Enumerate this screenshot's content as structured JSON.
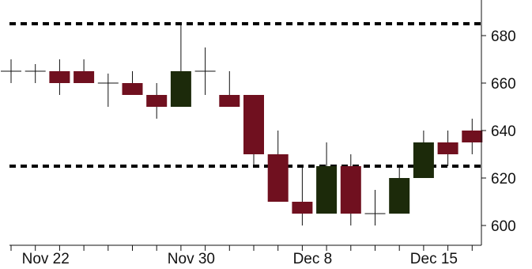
{
  "chart_data": {
    "type": "candlestick",
    "title": "",
    "xlabel": "",
    "ylabel": "",
    "ylim": [
      593,
      692
    ],
    "grid": false,
    "legend": "none",
    "colors": {
      "up": "#1c2a0a",
      "down": "#70101f",
      "wick": "#111111",
      "reference_line": "#000000",
      "axis": "#111111"
    },
    "x_tick_labels": [
      {
        "index": 1,
        "label": "Nov 22"
      },
      {
        "index": 7,
        "label": "Nov 30"
      },
      {
        "index": 12,
        "label": "Dec 8"
      },
      {
        "index": 17,
        "label": "Dec 15"
      }
    ],
    "y_tick_labels": [
      "600",
      "620",
      "640",
      "660",
      "680"
    ],
    "y_ticks": [
      600,
      620,
      640,
      660,
      680
    ],
    "reference_lines": [
      685,
      625
    ],
    "candles": [
      {
        "open": 665,
        "high": 670,
        "low": 660,
        "close": 665
      },
      {
        "open": 665,
        "high": 668,
        "low": 660,
        "close": 665
      },
      {
        "open": 665,
        "high": 670,
        "low": 655,
        "close": 660
      },
      {
        "open": 665,
        "high": 670,
        "low": 660,
        "close": 660
      },
      {
        "open": 660,
        "high": 664,
        "low": 650,
        "close": 660
      },
      {
        "open": 660,
        "high": 665,
        "low": 655,
        "close": 655
      },
      {
        "open": 655,
        "high": 660,
        "low": 645,
        "close": 650
      },
      {
        "open": 650,
        "high": 685,
        "low": 650,
        "close": 665
      },
      {
        "open": 665,
        "high": 675,
        "low": 655,
        "close": 665
      },
      {
        "open": 655,
        "high": 665,
        "low": 650,
        "close": 650
      },
      {
        "open": 655,
        "high": 655,
        "low": 625,
        "close": 630
      },
      {
        "open": 630,
        "high": 640,
        "low": 610,
        "close": 610
      },
      {
        "open": 610,
        "high": 625,
        "low": 600,
        "close": 605
      },
      {
        "open": 605,
        "high": 635,
        "low": 605,
        "close": 625
      },
      {
        "open": 625,
        "high": 630,
        "low": 600,
        "close": 605
      },
      {
        "open": 605,
        "high": 615,
        "low": 600,
        "close": 605
      },
      {
        "open": 605,
        "high": 625,
        "low": 605,
        "close": 620
      },
      {
        "open": 620,
        "high": 640,
        "low": 620,
        "close": 635
      },
      {
        "open": 635,
        "high": 640,
        "low": 625,
        "close": 630
      },
      {
        "open": 640,
        "high": 645,
        "low": 630,
        "close": 635
      }
    ]
  }
}
